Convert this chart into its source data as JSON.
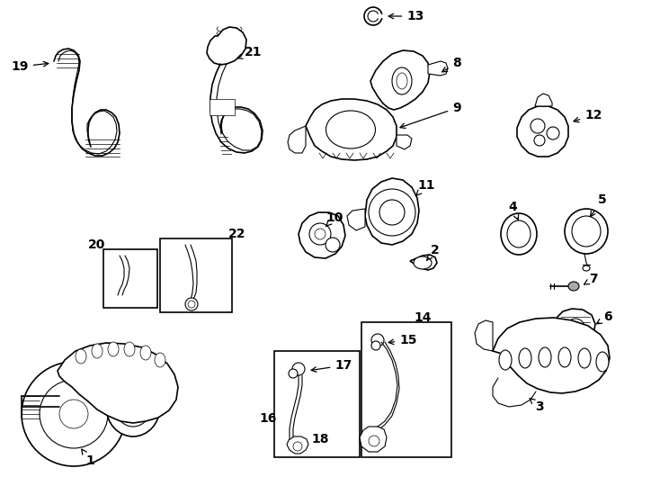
{
  "bg_color": "#ffffff",
  "line_color": "#000000",
  "fig_width": 7.34,
  "fig_height": 5.4,
  "dpi": 100,
  "label_fontsize": 10,
  "label_fontsize_sm": 9
}
